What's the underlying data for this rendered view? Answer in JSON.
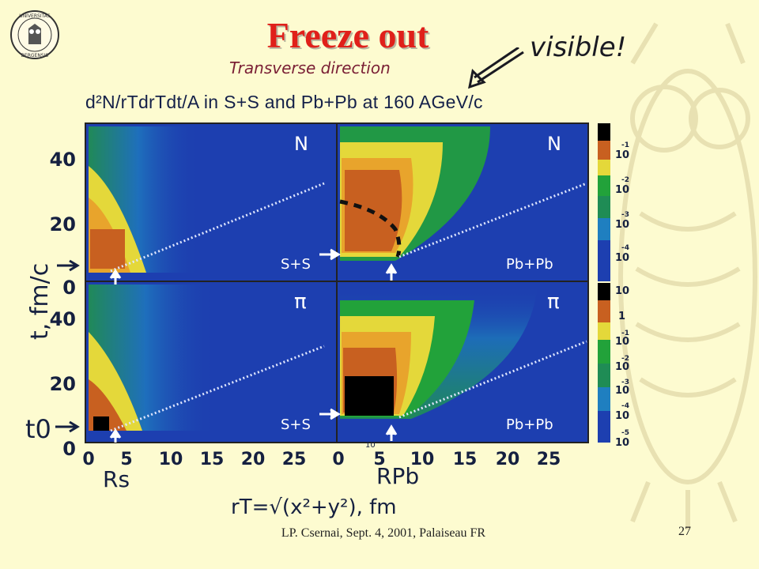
{
  "slide": {
    "title": "Freeze out",
    "subtitle_handwritten": "Transverse direction",
    "annotation_handwritten": "visible!",
    "footer_left": "LP. Csernai, Sept. 4, 2001, Palaiseau FR",
    "page_number": "27"
  },
  "figure": {
    "title": "d²N/rTdrTdt/A in S+S and Pb+Pb at 160 AGeV/c",
    "panel_labels": {
      "top_left": "N",
      "top_right": "N",
      "bottom_left": "π",
      "bottom_right": "π",
      "ss": "S+S",
      "pbpb": "Pb+Pb"
    },
    "y_ticks_top": [
      "40",
      "20",
      "0"
    ],
    "y_ticks_bottom": [
      "40",
      "20",
      "0"
    ],
    "x_ticks_left": [
      "0",
      "5",
      "10",
      "15",
      "20",
      "25"
    ],
    "x_ticks_right": [
      "0",
      "5",
      "10",
      "15",
      "20",
      "25"
    ],
    "ylabel": "t, fm/c",
    "xlabel": "rT=√(x²+y²), fm",
    "marker_rs": "Rs",
    "marker_rpb": "RPb",
    "marker_t0": "t0",
    "stray_mark": "10",
    "colorbar_top": [
      "-1",
      "10",
      "-2",
      "10",
      "-3",
      "10",
      "-4",
      "10"
    ],
    "colorbar_bottom": [
      "10",
      "1",
      "-1",
      "10",
      "-2",
      "10",
      "-3",
      "10",
      "-4",
      "10",
      "-5",
      "10"
    ]
  }
}
